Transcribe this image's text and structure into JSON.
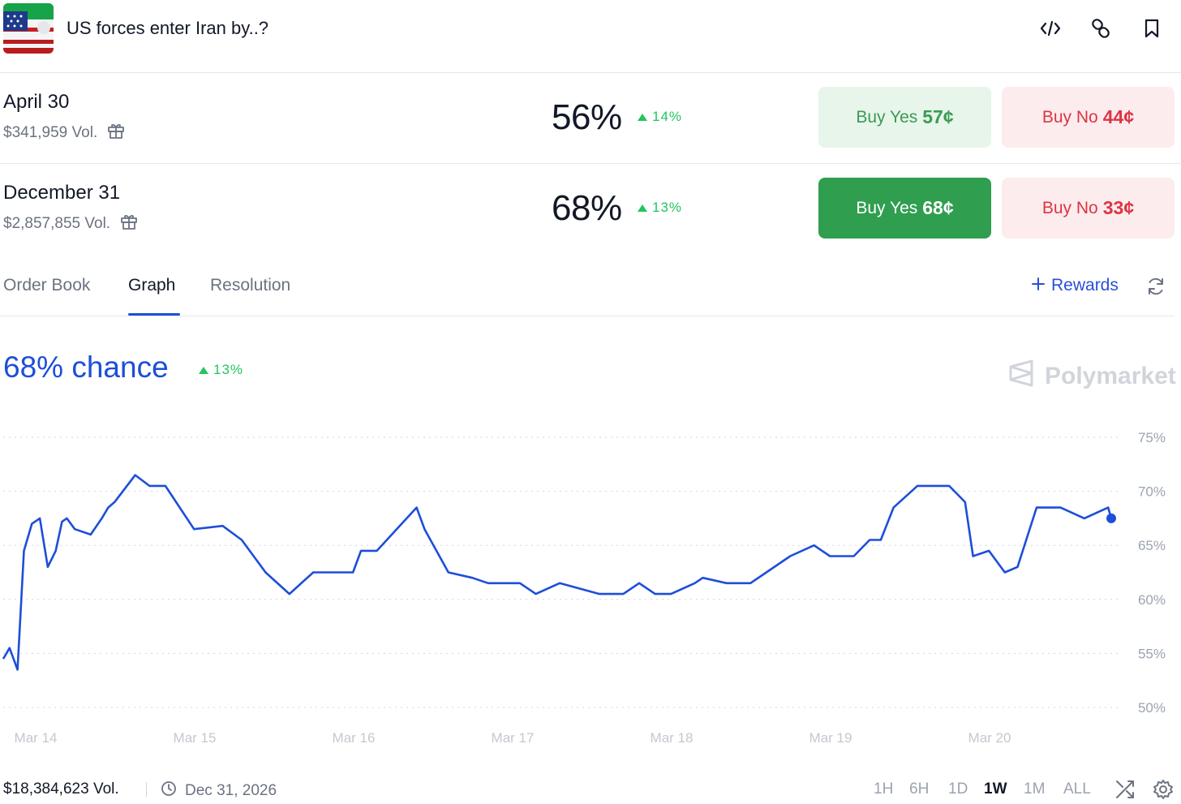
{
  "header": {
    "title": "US forces enter Iran by..?"
  },
  "markets": [
    {
      "name": "April 30",
      "volume": "$341,959 Vol.",
      "percent": "56%",
      "change": "14%",
      "yes_label": "Buy Yes",
      "yes_price": "57¢",
      "no_label": "Buy No",
      "no_price": "44¢"
    },
    {
      "name": "December 31",
      "volume": "$2,857,855 Vol.",
      "percent": "68%",
      "change": "13%",
      "yes_label": "Buy Yes",
      "yes_price": "68¢",
      "no_label": "Buy No",
      "no_price": "33¢"
    }
  ],
  "tabs": {
    "order_book": "Order Book",
    "graph": "Graph",
    "resolution": "Resolution",
    "rewards": "Rewards",
    "active": "Graph"
  },
  "chance": {
    "text": "68% chance",
    "change": "13%"
  },
  "brand": "Polymarket",
  "colors": {
    "line": "#1d4ed8",
    "up": "#22c55e",
    "yes_light_bg": "#e7f5ea",
    "yes_dark_bg": "#2f9e4f",
    "no_bg": "#fdeced",
    "no_text": "#dc3545"
  },
  "footer": {
    "volume": "$18,384,623 Vol.",
    "end_date": "Dec 31, 2026",
    "ranges": [
      "1H",
      "6H",
      "1D",
      "1W",
      "1M",
      "ALL"
    ],
    "active_range": "1W"
  },
  "icons": [
    "embed-code-icon",
    "link-icon",
    "bookmark-icon",
    "gift-icon",
    "refresh-icon",
    "clock-icon",
    "shuffle-icon",
    "settings-icon",
    "polymarket-logo-icon"
  ],
  "chart_data": {
    "type": "line",
    "x_tick_labels": [
      "Mar 14",
      "Mar 15",
      "Mar 16",
      "Mar 17",
      "Mar 18",
      "Mar 19",
      "Mar 20"
    ],
    "y_tick_labels": [
      "75%",
      "70%",
      "65%",
      "60%",
      "55%",
      "50%"
    ],
    "ylim": [
      50,
      75
    ],
    "xlim": [
      0,
      7
    ],
    "grid": true,
    "series": [
      {
        "x": [
          0.0,
          0.04,
          0.09,
          0.13,
          0.18,
          0.23,
          0.28,
          0.33,
          0.37,
          0.4,
          0.45,
          0.55,
          0.62,
          0.66,
          0.7,
          0.83,
          0.92,
          1.02,
          1.2,
          1.38,
          1.5,
          1.65,
          1.8,
          1.95,
          2.08,
          2.2,
          2.25,
          2.35,
          2.6,
          2.65,
          2.8,
          2.95,
          3.05,
          3.15,
          3.25,
          3.35,
          3.5,
          3.75,
          3.8,
          3.9,
          4.0,
          4.1,
          4.2,
          4.35,
          4.4,
          4.55,
          4.7,
          4.8,
          4.95,
          5.1,
          5.2,
          5.35,
          5.45,
          5.52,
          5.6,
          5.75,
          5.95,
          6.05,
          6.1,
          6.2,
          6.3,
          6.38,
          6.5,
          6.65,
          6.8,
          6.95,
          7.02
        ],
        "y": [
          54.5,
          55.5,
          53.5,
          64.5,
          67.0,
          67.5,
          63.0,
          64.5,
          67.2,
          67.5,
          66.5,
          66.0,
          67.5,
          68.5,
          69.0,
          71.5,
          70.5,
          70.5,
          66.5,
          66.8,
          65.5,
          62.5,
          60.5,
          62.5,
          62.5,
          62.5,
          64.5,
          64.5,
          68.5,
          66.5,
          62.5,
          62.0,
          61.5,
          61.5,
          61.5,
          60.5,
          61.5,
          60.5,
          60.5,
          60.5,
          61.5,
          60.5,
          60.5,
          61.5,
          62.0,
          61.5,
          61.5,
          62.5,
          64.0,
          65.0,
          64.0,
          64.0,
          65.5,
          65.5,
          68.5,
          70.5,
          70.5,
          69.0,
          64.0,
          64.5,
          62.5,
          63.0,
          68.5,
          68.5,
          67.5,
          68.5,
          67.5
        ]
      }
    ]
  }
}
